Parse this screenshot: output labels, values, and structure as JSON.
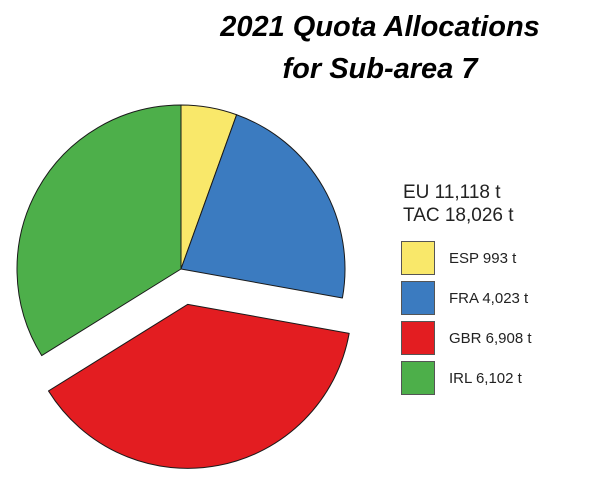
{
  "chart_data": {
    "type": "pie",
    "title_lines": [
      "2021 Quota Allocations",
      "for Sub-area 7"
    ],
    "totals": [
      "EU 11,118 t",
      "TAC 18,026 t"
    ],
    "slices": [
      {
        "label": "ESP 993 t",
        "value": 993,
        "color": "#f9e86a"
      },
      {
        "label": "FRA 4,023 t",
        "value": 4023,
        "color": "#3b7bc0"
      },
      {
        "label": "GBR 6,908 t",
        "value": 6908,
        "color": "#e31d21",
        "exploded": true
      },
      {
        "label": "IRL 6,102 t",
        "value": 6102,
        "color": "#4daf4a"
      }
    ],
    "legend_position": "right"
  }
}
